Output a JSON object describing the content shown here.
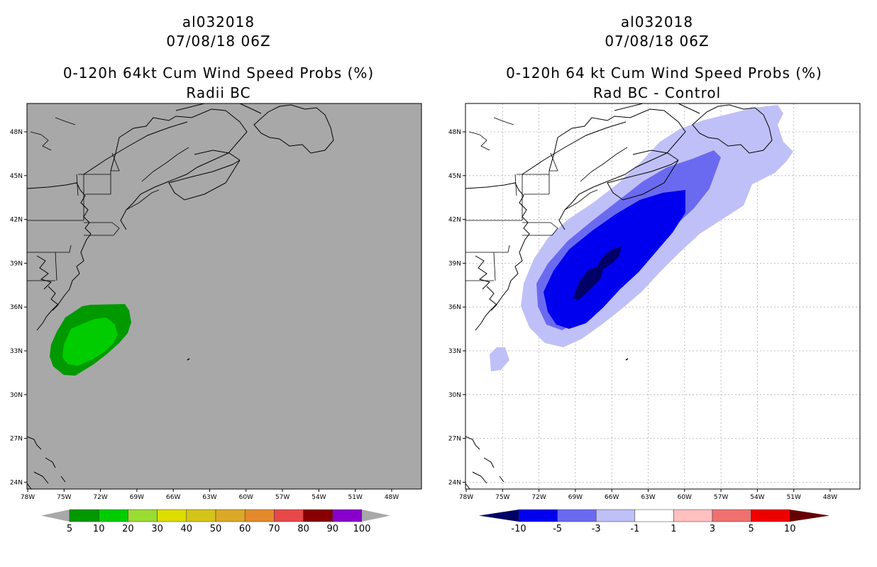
{
  "panels": [
    {
      "storm_id": "al032018",
      "datetime": "07/08/18 06Z",
      "product": "0-120h 64kt Cum Wind Speed Probs (%)",
      "subtitle": "Radii BC",
      "background": "#a8a8a8",
      "lon_ticks": [
        "78W",
        "75W",
        "72W",
        "69W",
        "66W",
        "63W",
        "60W",
        "57W",
        "54W",
        "51W",
        "48W"
      ],
      "lat_ticks": [
        "48N",
        "45N",
        "42N",
        "39N",
        "36N",
        "33N",
        "30N",
        "27N",
        "24N"
      ],
      "colorbar": {
        "labels": [
          "5",
          "10",
          "20",
          "30",
          "40",
          "50",
          "60",
          "70",
          "80",
          "90",
          "100"
        ],
        "colors": [
          "#009900",
          "#00cc00",
          "#99dd33",
          "#dddd00",
          "#d4c41a",
          "#dda828",
          "#e58a2c",
          "#e84848",
          "#880000",
          "#8800cc"
        ],
        "end_color": "#a8a8a8"
      }
    },
    {
      "storm_id": "al032018",
      "datetime": "07/08/18 06Z",
      "product": "0-120h 64 kt Cum Wind Speed Probs (%)",
      "subtitle": "Rad BC - Control",
      "background": "#ffffff",
      "lon_ticks": [
        "78W",
        "75W",
        "72W",
        "69W",
        "66W",
        "63W",
        "60W",
        "57W",
        "54W",
        "51W",
        "48W"
      ],
      "lat_ticks": [
        "48N",
        "45N",
        "42N",
        "39N",
        "36N",
        "33N",
        "30N",
        "27N",
        "24N"
      ],
      "colorbar": {
        "labels": [
          "-10",
          "-5",
          "-3",
          "-1",
          "1",
          "3",
          "5",
          "10"
        ],
        "colors": [
          "#000066",
          "#0000ee",
          "#6a6af0",
          "#c0c0f8",
          "#ffffff",
          "#ffc0c0",
          "#f07070",
          "#ee0000",
          "#660000"
        ]
      }
    }
  ]
}
